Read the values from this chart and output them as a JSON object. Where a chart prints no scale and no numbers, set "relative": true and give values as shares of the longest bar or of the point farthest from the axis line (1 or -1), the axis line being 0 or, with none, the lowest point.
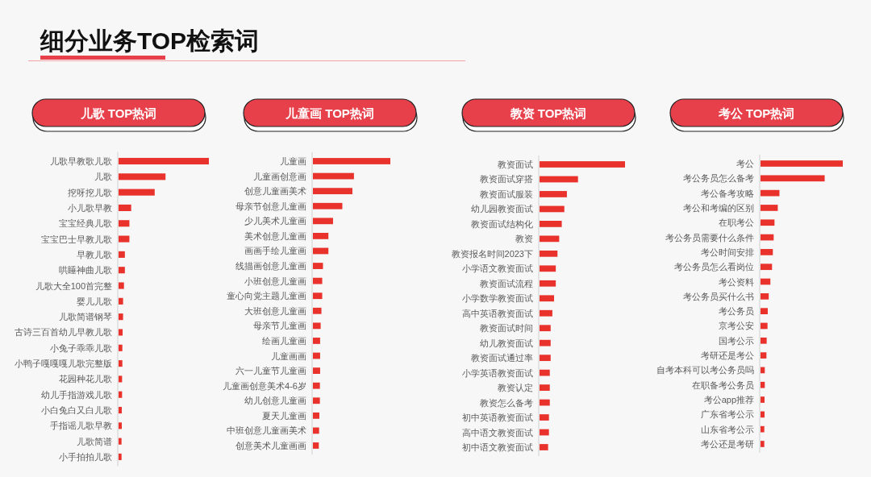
{
  "chart_data": [
    {
      "type": "other",
      "title": "细分业务TOP检索词"
    },
    {
      "type": "bar",
      "orientation": "horizontal",
      "relative": true,
      "title": "儿歌 TOP热词",
      "color": "#e8322b",
      "categories": [
        "儿歌早教歌儿歌",
        "儿歌",
        "挖呀挖儿歌",
        "小儿歌早教",
        "宝宝经典儿歌",
        "宝宝巴士早教儿歌",
        "早教儿歌",
        "哄睡神曲儿歌",
        "儿歌大全100首完整",
        "婴儿儿歌",
        "儿歌简谱钢琴",
        "古诗三百首幼儿早教儿歌",
        "小兔子乖乖儿歌",
        "小鸭子嘎嘎嘎儿歌完整版",
        "花园种花儿歌",
        "幼儿手指游戏儿歌",
        "小白兔白又白儿歌",
        "手指谣儿歌早教",
        "儿歌简谱",
        "小手拍拍儿歌"
      ],
      "values": [
        1,
        0.52,
        0.4,
        0.14,
        0.12,
        0.12,
        0.07,
        0.07,
        0.06,
        0.05,
        0.05,
        0.045,
        0.042,
        0.042,
        0.039,
        0.039,
        0.036,
        0.036,
        0.033,
        0.033
      ]
    },
    {
      "type": "bar",
      "orientation": "horizontal",
      "relative": true,
      "title": "儿童画 TOP热词",
      "color": "#e8322b",
      "categories": [
        "儿童画",
        "儿童画创意画",
        "创意儿童画美术",
        "母亲节创意儿童画",
        "少儿美术儿童画",
        "美术创意儿童画",
        "画画手绘儿童画",
        "线描画创意儿童画",
        "小班创意儿童画",
        "童心向党主题儿童画",
        "大班创意儿童画",
        "母亲节儿童画",
        "绘画儿童画",
        "儿童画画",
        "六一儿童节儿童画",
        "儿童画创意美术4-6岁",
        "幼儿创意儿童画",
        "夏天儿童画",
        "中班创意儿童画美术",
        "创意美术儿童画画"
      ],
      "values": [
        1,
        0.53,
        0.51,
        0.38,
        0.26,
        0.2,
        0.2,
        0.13,
        0.12,
        0.12,
        0.11,
        0.1,
        0.093,
        0.093,
        0.093,
        0.09,
        0.09,
        0.083,
        0.08,
        0.076
      ]
    },
    {
      "type": "bar",
      "orientation": "horizontal",
      "relative": true,
      "title": "教资 TOP热词",
      "color": "#e8322b",
      "categories": [
        "教资面试",
        "教资面试穿搭",
        "教资面试服装",
        "幼儿园教资面试",
        "教资面试结构化",
        "教资",
        "教资报名时间2023下",
        "小学语文教资面试",
        "教资面试流程",
        "小学数学教资面试",
        "高中英语教资面试",
        "教资面试时间",
        "幼儿教资面试",
        "教资面试通过率",
        "小学英语教资面试",
        "教资认定",
        "教资怎么备考",
        "初中英语教资面试",
        "高中语文教资面试",
        "初中语文教资面试"
      ],
      "values": [
        1,
        0.45,
        0.32,
        0.29,
        0.26,
        0.23,
        0.21,
        0.19,
        0.19,
        0.17,
        0.15,
        0.13,
        0.13,
        0.13,
        0.12,
        0.12,
        0.12,
        0.11,
        0.11,
        0.1
      ]
    },
    {
      "type": "bar",
      "orientation": "horizontal",
      "relative": true,
      "title": "考公 TOP热词",
      "color": "#e8322b",
      "categories": [
        "考公",
        "考公务员怎么备考",
        "考公备考攻略",
        "考公和考编的区别",
        "在职考公",
        "考公务员需要什么条件",
        "考公时间安排",
        "考公务员怎么看岗位",
        "考公资料",
        "考公务员买什么书",
        "考公务员",
        "京考公安",
        "国考公示",
        "考研还是考公",
        "自考本科可以考公务员吗",
        "在职备考公务员",
        "考公app推荐",
        "广东省考公示",
        "山东省考公示",
        "考公还是考研"
      ],
      "values": [
        1,
        0.78,
        0.23,
        0.21,
        0.17,
        0.16,
        0.15,
        0.14,
        0.12,
        0.1,
        0.088,
        0.085,
        0.075,
        0.072,
        0.052,
        0.052,
        0.049,
        0.049,
        0.046,
        0.046
      ]
    }
  ]
}
